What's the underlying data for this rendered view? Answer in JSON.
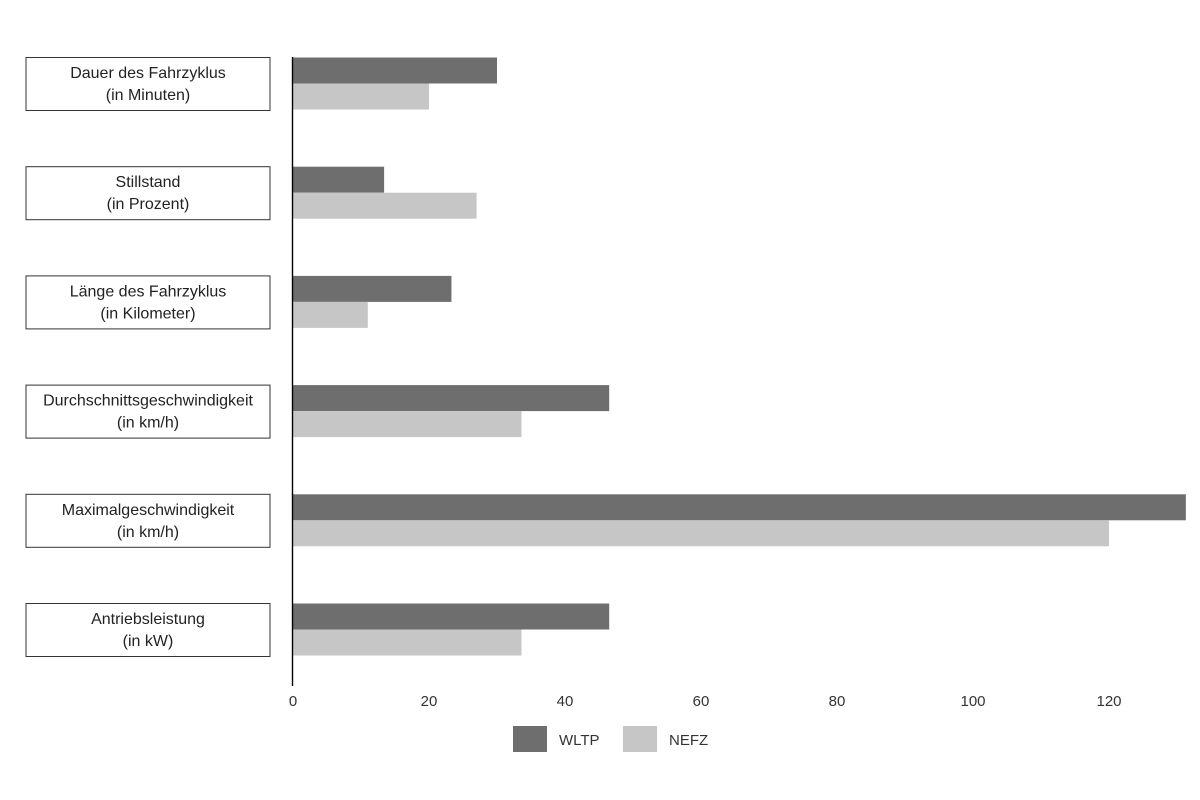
{
  "chart_data": {
    "type": "bar",
    "orientation": "horizontal",
    "categories": [
      [
        "Dauer des Fahrzyklus",
        "(in Minuten)"
      ],
      [
        "Stillstand",
        "(in Prozent)"
      ],
      [
        "Länge des Fahrzyklus",
        "(in Kilometer)"
      ],
      [
        "Durchschnittsgeschwindigkeit",
        "(in km/h)"
      ],
      [
        "Maximalgeschwindigkeit",
        "(in km/h)"
      ],
      [
        "Antriebsleistung",
        "(in kW)"
      ]
    ],
    "series": [
      {
        "name": "WLTP",
        "color": "#6e6e6e",
        "values": [
          30,
          13.4,
          23.3,
          46.5,
          131.3,
          46.5
        ]
      },
      {
        "name": "NEFZ",
        "color": "#c6c6c6",
        "values": [
          20,
          27,
          11,
          33.6,
          120,
          33.6
        ]
      }
    ],
    "xticks": [
      "0",
      "20",
      "40",
      "60",
      "80",
      "100",
      "120"
    ],
    "xlim": [
      0,
      130
    ],
    "legend_position": "bottom-center",
    "grid": false
  }
}
